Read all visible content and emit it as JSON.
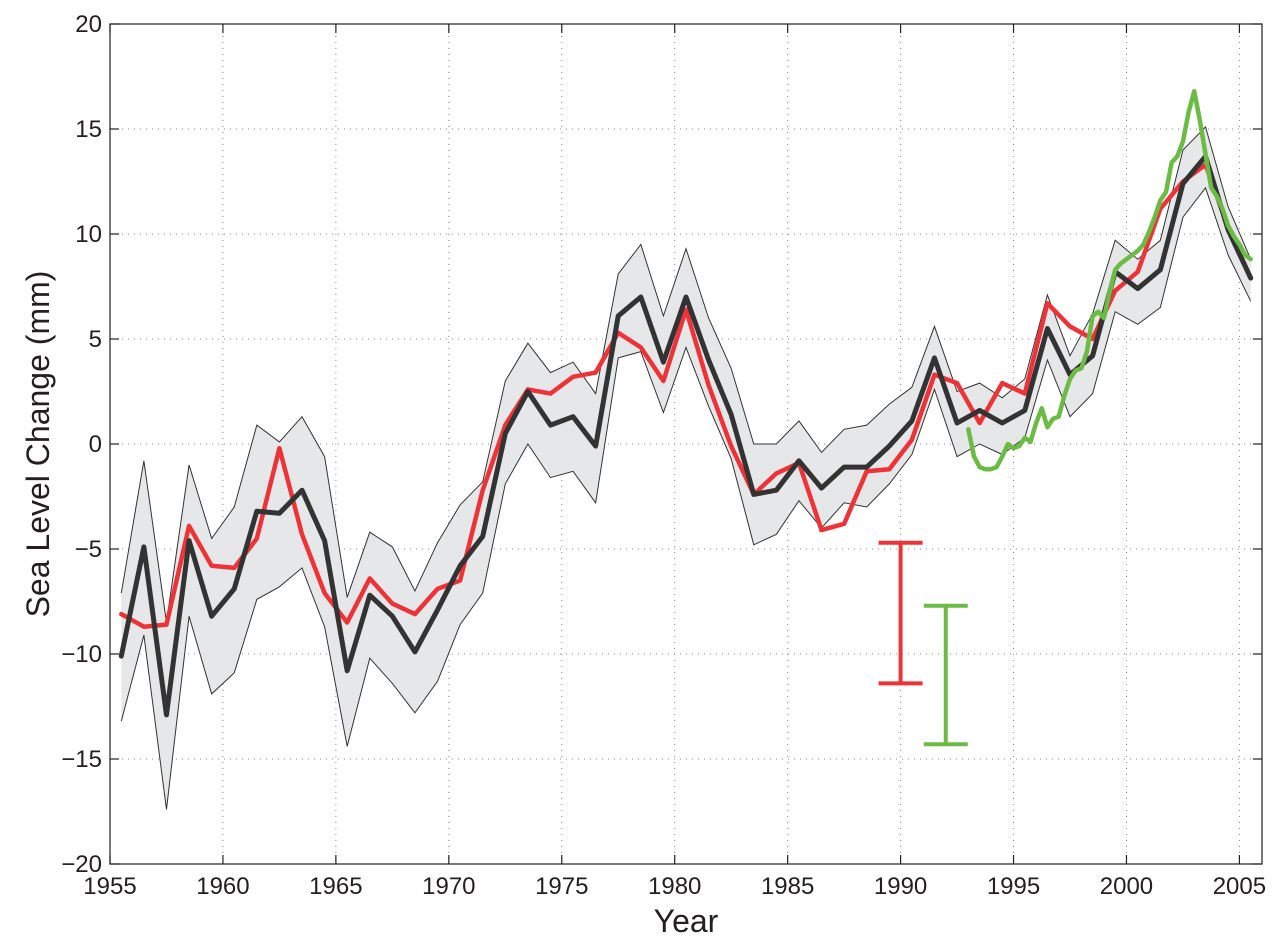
{
  "chart_data": {
    "type": "line",
    "title": "",
    "xlabel": "Year",
    "ylabel": "Sea Level Change (mm)",
    "xlim": [
      1955,
      2006
    ],
    "ylim": [
      -20,
      20
    ],
    "xticks": [
      1955,
      1960,
      1965,
      1970,
      1975,
      1980,
      1985,
      1990,
      1995,
      2000,
      2005
    ],
    "yticks": [
      -20,
      -15,
      -10,
      -5,
      0,
      5,
      10,
      15,
      20
    ],
    "grid": true,
    "legend": "none",
    "colors": {
      "black": "#333333",
      "red": "#ee3338",
      "green": "#6cbb45",
      "band_fill": "#e6e7e8",
      "band_edge": "#333333",
      "frame": "#231f20",
      "grid": "#888888"
    },
    "band": {
      "x": [
        1955.5,
        1956.5,
        1957.5,
        1958.5,
        1959.5,
        1960.5,
        1961.5,
        1962.5,
        1963.5,
        1964.5,
        1965.5,
        1966.5,
        1967.5,
        1968.5,
        1969.5,
        1970.5,
        1971.5,
        1972.5,
        1973.5,
        1974.5,
        1975.5,
        1976.5,
        1977.5,
        1978.5,
        1979.5,
        1980.5,
        1981.5,
        1982.5,
        1983.5,
        1984.5,
        1985.5,
        1986.5,
        1987.5,
        1988.5,
        1989.5,
        1990.5,
        1991.5,
        1992.5,
        1993.5,
        1994.5,
        1995.5,
        1996.5,
        1997.5,
        1998.5,
        1999.5,
        2000.5,
        2001.5,
        2002.5,
        2003.5,
        2004.5,
        2005.5
      ],
      "upper": [
        -7.1,
        -0.8,
        -8.5,
        -1.0,
        -4.5,
        -3.0,
        0.9,
        0.1,
        1.3,
        -0.6,
        -7.3,
        -4.2,
        -4.9,
        -7.0,
        -4.7,
        -2.9,
        -1.8,
        3.0,
        4.8,
        3.4,
        3.9,
        2.4,
        8.1,
        9.5,
        6.1,
        9.3,
        6.0,
        3.6,
        0.0,
        0.0,
        1.1,
        -0.4,
        0.7,
        0.9,
        1.9,
        2.7,
        5.6,
        2.5,
        2.9,
        2.2,
        3.1,
        7.1,
        4.2,
        6.2,
        9.7,
        8.8,
        9.7,
        14.0,
        15.1,
        11.3,
        8.8
      ],
      "lower": [
        -13.2,
        -9.1,
        -17.4,
        -8.2,
        -11.9,
        -10.9,
        -7.4,
        -6.8,
        -5.9,
        -8.7,
        -14.4,
        -10.2,
        -11.4,
        -12.8,
        -11.3,
        -8.6,
        -7.1,
        -1.9,
        0.0,
        -1.6,
        -1.3,
        -2.8,
        4.1,
        4.4,
        1.5,
        4.6,
        1.8,
        -0.7,
        -4.8,
        -4.3,
        -2.7,
        -4.0,
        -2.8,
        -3.0,
        -1.9,
        -0.5,
        2.6,
        -0.6,
        0.0,
        -0.5,
        0.3,
        4.0,
        1.3,
        2.4,
        6.3,
        5.7,
        6.5,
        10.8,
        12.2,
        9.0,
        6.8
      ]
    },
    "series": [
      {
        "x": [
          1955.5,
          1956.5,
          1957.5,
          1958.5,
          1959.5,
          1960.5,
          1961.5,
          1962.5,
          1963.5,
          1964.5,
          1965.5,
          1966.5,
          1967.5,
          1968.5,
          1969.5,
          1970.5,
          1971.5,
          1972.5,
          1973.5,
          1974.5,
          1975.5,
          1976.5,
          1977.5,
          1978.5,
          1979.5,
          1980.5,
          1981.5,
          1982.5,
          1983.5,
          1984.5,
          1985.5,
          1986.5,
          1987.5,
          1988.5,
          1989.5,
          1990.5,
          1991.5,
          1992.5,
          1993.5,
          1994.5,
          1995.5,
          1996.5,
          1997.5,
          1998.5,
          1999.5,
          2000.5,
          2001.5,
          2002.5,
          2003.5,
          2004.5,
          2005.5
        ],
        "values": [
          -8.1,
          -8.7,
          -8.6,
          -3.9,
          -5.8,
          -5.9,
          -4.5,
          -0.2,
          -4.3,
          -7.1,
          -8.5,
          -6.4,
          -7.6,
          -8.1,
          -6.9,
          -6.5,
          -2.2,
          0.9,
          2.6,
          2.4,
          3.2,
          3.4,
          5.3,
          4.6,
          3.0,
          6.4,
          2.8,
          -0.1,
          -2.4,
          -1.4,
          -0.9,
          -4.1,
          -3.8,
          -1.3,
          -1.2,
          0.2,
          3.3,
          2.9,
          1.0,
          2.9,
          2.4,
          6.7,
          5.6,
          5.0,
          7.3,
          8.2,
          11.2,
          12.5,
          13.3,
          10.3,
          7.9
        ],
        "color": "#ee3338",
        "width": 4.5
      },
      {
        "x": [
          1955.5,
          1956.5,
          1957.5,
          1958.5,
          1959.5,
          1960.5,
          1961.5,
          1962.5,
          1963.5,
          1964.5,
          1965.5,
          1966.5,
          1967.5,
          1968.5,
          1969.5,
          1970.5,
          1971.5,
          1972.5,
          1973.5,
          1974.5,
          1975.5,
          1976.5,
          1977.5,
          1978.5,
          1979.5,
          1980.5,
          1981.5,
          1982.5,
          1983.5,
          1984.5,
          1985.5,
          1986.5,
          1987.5,
          1988.5,
          1989.5,
          1990.5,
          1991.5,
          1992.5,
          1993.5,
          1994.5,
          1995.5,
          1996.5,
          1997.5,
          1998.5,
          1999.5,
          2000.5,
          2001.5,
          2002.5,
          2003.5,
          2004.5,
          2005.5
        ],
        "values": [
          -10.1,
          -4.9,
          -12.9,
          -4.6,
          -8.2,
          -6.9,
          -3.2,
          -3.3,
          -2.2,
          -4.6,
          -10.8,
          -7.2,
          -8.2,
          -9.9,
          -7.9,
          -5.8,
          -4.4,
          0.5,
          2.5,
          0.9,
          1.3,
          -0.1,
          6.1,
          7.0,
          3.9,
          7.0,
          4.0,
          1.4,
          -2.4,
          -2.2,
          -0.8,
          -2.1,
          -1.1,
          -1.1,
          -0.1,
          1.1,
          4.1,
          1.0,
          1.6,
          1.0,
          1.6,
          5.5,
          3.3,
          4.2,
          8.2,
          7.4,
          8.3,
          12.4,
          13.7,
          10.2,
          7.9
        ],
        "color": "#333333",
        "width": 5
      },
      {
        "x": [
          1993.0,
          1993.25,
          1993.5,
          1993.75,
          1994.0,
          1994.25,
          1994.5,
          1994.75,
          1995.0,
          1995.25,
          1995.5,
          1995.75,
          1996.0,
          1996.25,
          1996.5,
          1996.75,
          1997.0,
          1997.25,
          1997.5,
          1997.75,
          1998.0,
          1998.25,
          1998.5,
          1998.75,
          1999.0,
          1999.25,
          1999.5,
          1999.75,
          2000.0,
          2000.25,
          2000.5,
          2000.75,
          2001.0,
          2001.25,
          2001.5,
          2001.75,
          2002.0,
          2002.25,
          2002.5,
          2002.75,
          2003.0,
          2003.25,
          2003.5,
          2003.75,
          2004.0,
          2004.25,
          2004.5,
          2004.75,
          2005.0,
          2005.25,
          2005.5
        ],
        "values": [
          0.7,
          -0.6,
          -1.1,
          -1.2,
          -1.2,
          -1.1,
          -0.6,
          0.0,
          -0.2,
          -0.1,
          0.3,
          0.1,
          1.0,
          1.7,
          0.8,
          1.2,
          1.3,
          2.3,
          3.1,
          3.5,
          3.6,
          4.4,
          6.1,
          6.3,
          6.0,
          7.2,
          8.3,
          8.6,
          8.8,
          9.0,
          9.2,
          9.5,
          10.1,
          10.8,
          11.6,
          12.0,
          13.4,
          13.7,
          14.4,
          15.8,
          16.8,
          15.4,
          13.8,
          12.2,
          11.8,
          11.2,
          10.4,
          9.9,
          9.5,
          9.0,
          8.8
        ],
        "color": "#6cbb45",
        "width": 4.5
      }
    ],
    "error_bars": [
      {
        "x": 1990,
        "low": -11.4,
        "high": -4.7,
        "color": "#ee3338"
      },
      {
        "x": 1992,
        "low": -14.3,
        "high": -7.7,
        "color": "#6cbb45"
      }
    ]
  }
}
